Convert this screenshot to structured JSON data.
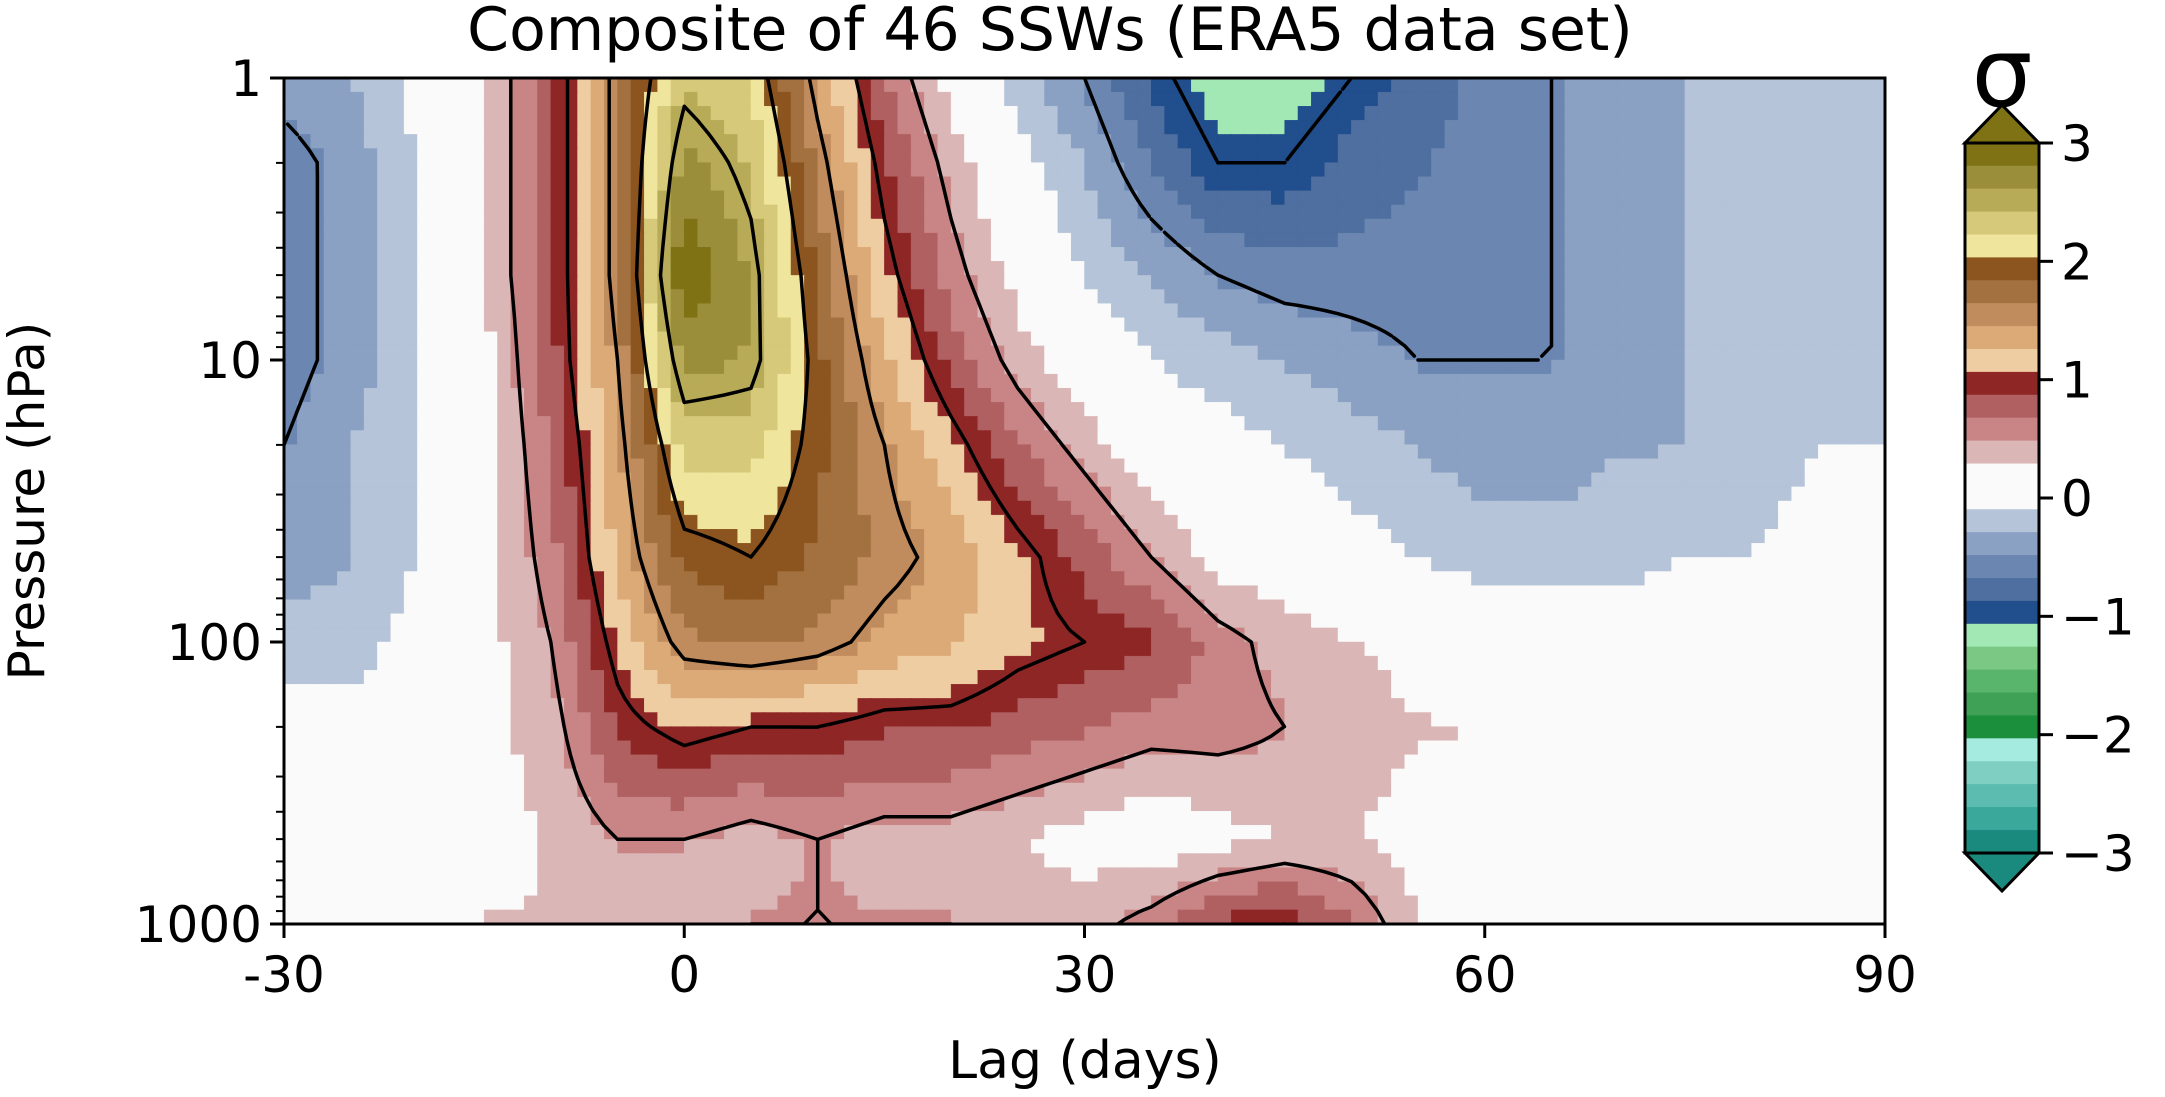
{
  "chart_data": {
    "type": "heatmap",
    "title": "Composite of 46 SSWs (ERA5 data set)",
    "xlabel": "Lag (days)",
    "ylabel": "Pressure (hPa)",
    "x_ticks": [
      "-30",
      "0",
      "30",
      "60",
      "90"
    ],
    "x_range": [
      -30,
      90
    ],
    "y_ticks": [
      "1",
      "10",
      "100",
      "1000"
    ],
    "y_range": [
      1,
      1000
    ],
    "y_scale": "log",
    "y_inverted": true,
    "colorbar": {
      "label": "σ",
      "ticks": [
        "3",
        "2",
        "1",
        "0",
        "−1",
        "−2",
        "−3"
      ],
      "range": [
        -3,
        3
      ],
      "extend": "both",
      "colors_low_to_high": [
        "#1b8a7e",
        "#3aa89b",
        "#5bbcaf",
        "#7fd0c2",
        "#a6ebdf",
        "#1b8f3c",
        "#3fa156",
        "#5ab56c",
        "#7ac884",
        "#a2e8b4",
        "#214e8c",
        "#4e6f9f",
        "#6a86b1",
        "#8aa1c3",
        "#b5c4d8",
        "#fafafa",
        "#fafafa",
        "#dbb6b6",
        "#c98585",
        "#b06060",
        "#8e2626",
        "#efcda3",
        "#dcaa77",
        "#c08c5d",
        "#a3713f",
        "#8c5520",
        "#efe59d",
        "#d6c97a",
        "#b8ab57",
        "#9b8e3b",
        "#7e7215"
      ]
    },
    "field": {
      "lags": [
        -30,
        -25,
        -20,
        -15,
        -10,
        -5,
        0,
        5,
        10,
        15,
        20,
        25,
        30,
        35,
        40,
        45,
        50,
        55,
        60,
        65,
        70,
        75,
        80,
        85,
        90
      ],
      "levels": [
        1,
        2,
        5,
        10,
        20,
        50,
        100,
        200,
        500,
        1000
      ],
      "values": [
        [
          -0.4,
          -0.3,
          0.0,
          0.3,
          0.8,
          1.6,
          2.4,
          2.2,
          1.4,
          0.7,
          0.2,
          -0.2,
          -0.5,
          -0.9,
          -1.2,
          -1.2,
          -1.0,
          -0.8,
          -0.6,
          -0.5,
          -0.4,
          -0.3,
          -0.2,
          -0.1,
          -0.1
        ],
        [
          -0.6,
          -0.4,
          -0.1,
          0.3,
          0.8,
          1.6,
          2.7,
          2.4,
          1.6,
          0.9,
          0.4,
          0.0,
          -0.3,
          -0.7,
          -1.0,
          -1.0,
          -0.8,
          -0.7,
          -0.6,
          -0.5,
          -0.4,
          -0.3,
          -0.2,
          -0.1,
          -0.1
        ],
        [
          -0.6,
          -0.4,
          -0.1,
          0.3,
          0.8,
          1.6,
          3.0,
          2.6,
          1.8,
          1.1,
          0.6,
          0.2,
          -0.1,
          -0.3,
          -0.5,
          -0.6,
          -0.6,
          -0.6,
          -0.6,
          -0.5,
          -0.4,
          -0.3,
          -0.2,
          -0.1,
          -0.1
        ],
        [
          -0.6,
          -0.4,
          -0.1,
          0.2,
          0.8,
          1.5,
          2.7,
          2.6,
          1.9,
          1.3,
          0.8,
          0.4,
          0.1,
          -0.1,
          -0.2,
          -0.3,
          -0.4,
          -0.5,
          -0.5,
          -0.5,
          -0.4,
          -0.3,
          -0.2,
          -0.1,
          -0.1
        ],
        [
          -0.5,
          -0.3,
          -0.1,
          0.2,
          0.7,
          1.4,
          2.3,
          2.3,
          1.9,
          1.5,
          1.1,
          0.7,
          0.4,
          0.1,
          0.0,
          -0.1,
          -0.2,
          -0.3,
          -0.4,
          -0.4,
          -0.3,
          -0.3,
          -0.2,
          -0.1,
          -0.1
        ],
        [
          -0.4,
          -0.3,
          -0.1,
          0.2,
          0.6,
          1.3,
          1.9,
          2.0,
          1.8,
          1.6,
          1.4,
          1.1,
          0.8,
          0.5,
          0.2,
          0.1,
          0.0,
          -0.1,
          -0.2,
          -0.2,
          -0.2,
          -0.1,
          -0.1,
          0.0,
          0.0
        ],
        [
          -0.2,
          -0.2,
          0.0,
          0.2,
          0.5,
          1.1,
          1.6,
          1.7,
          1.6,
          1.4,
          1.3,
          1.1,
          1.0,
          0.9,
          0.6,
          0.4,
          0.3,
          0.2,
          0.1,
          0.1,
          0.1,
          0.1,
          0.0,
          0.0,
          0.0
        ],
        [
          0.0,
          0.0,
          0.1,
          0.2,
          0.4,
          0.9,
          1.1,
          1.0,
          1.0,
          0.9,
          0.9,
          0.8,
          0.7,
          0.6,
          0.6,
          0.5,
          0.4,
          0.3,
          0.3,
          0.2,
          0.2,
          0.1,
          0.0,
          0.0,
          0.0
        ],
        [
          0.1,
          0.1,
          0.1,
          0.2,
          0.3,
          0.5,
          0.5,
          0.4,
          0.5,
          0.4,
          0.4,
          0.3,
          0.2,
          0.1,
          0.2,
          0.3,
          0.3,
          0.2,
          0.1,
          0.1,
          0.1,
          0.0,
          0.0,
          0.0,
          0.0
        ],
        [
          0.2,
          0.2,
          0.2,
          0.3,
          0.3,
          0.4,
          0.4,
          0.5,
          0.5,
          0.5,
          0.5,
          0.4,
          0.4,
          0.6,
          0.9,
          1.0,
          0.7,
          0.3,
          0.1,
          0.0,
          0.0,
          0.0,
          0.0,
          0.0,
          0.0
        ]
      ],
      "contour_levels": [
        -1,
        -0.5,
        0.5,
        1,
        1.5,
        2,
        2.5
      ]
    }
  }
}
